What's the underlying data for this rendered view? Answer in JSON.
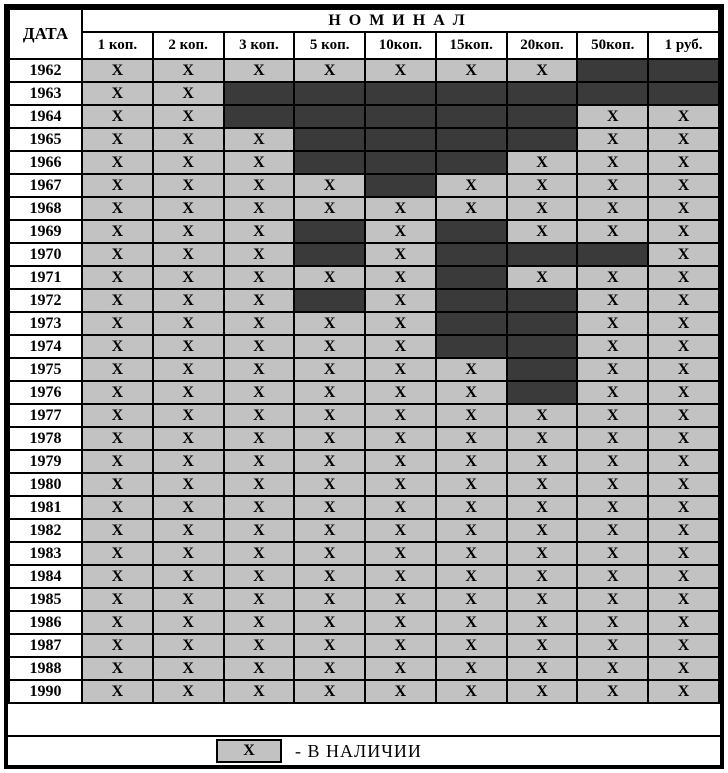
{
  "chart_data": {
    "type": "table",
    "row_header": "ДАТА",
    "title": "НОМИНАЛ",
    "columns": [
      "1 коп.",
      "2 коп.",
      "3 коп.",
      "5 коп.",
      "10коп.",
      "15коп.",
      "20коп.",
      "50коп.",
      "1 руб."
    ],
    "mark": "X",
    "rows": [
      {
        "year": "1962",
        "cells": [
          1,
          1,
          1,
          1,
          1,
          1,
          1,
          0,
          0
        ]
      },
      {
        "year": "1963",
        "cells": [
          1,
          1,
          0,
          0,
          0,
          0,
          0,
          0,
          0
        ]
      },
      {
        "year": "1964",
        "cells": [
          1,
          1,
          0,
          0,
          0,
          0,
          0,
          1,
          1
        ]
      },
      {
        "year": "1965",
        "cells": [
          1,
          1,
          1,
          0,
          0,
          0,
          0,
          1,
          1
        ]
      },
      {
        "year": "1966",
        "cells": [
          1,
          1,
          1,
          0,
          0,
          0,
          1,
          1,
          1
        ]
      },
      {
        "year": "1967",
        "cells": [
          1,
          1,
          1,
          1,
          0,
          1,
          1,
          1,
          1
        ]
      },
      {
        "year": "1968",
        "cells": [
          1,
          1,
          1,
          1,
          1,
          1,
          1,
          1,
          1
        ]
      },
      {
        "year": "1969",
        "cells": [
          1,
          1,
          1,
          0,
          1,
          0,
          1,
          1,
          1
        ]
      },
      {
        "year": "1970",
        "cells": [
          1,
          1,
          1,
          0,
          1,
          0,
          0,
          0,
          1
        ]
      },
      {
        "year": "1971",
        "cells": [
          1,
          1,
          1,
          1,
          1,
          0,
          1,
          1,
          1
        ]
      },
      {
        "year": "1972",
        "cells": [
          1,
          1,
          1,
          0,
          1,
          0,
          0,
          1,
          1
        ]
      },
      {
        "year": "1973",
        "cells": [
          1,
          1,
          1,
          1,
          1,
          0,
          0,
          1,
          1
        ]
      },
      {
        "year": "1974",
        "cells": [
          1,
          1,
          1,
          1,
          1,
          0,
          0,
          1,
          1
        ]
      },
      {
        "year": "1975",
        "cells": [
          1,
          1,
          1,
          1,
          1,
          1,
          0,
          1,
          1
        ]
      },
      {
        "year": "1976",
        "cells": [
          1,
          1,
          1,
          1,
          1,
          1,
          0,
          1,
          1
        ]
      },
      {
        "year": "1977",
        "cells": [
          1,
          1,
          1,
          1,
          1,
          1,
          1,
          1,
          1
        ]
      },
      {
        "year": "1978",
        "cells": [
          1,
          1,
          1,
          1,
          1,
          1,
          1,
          1,
          1
        ]
      },
      {
        "year": "1979",
        "cells": [
          1,
          1,
          1,
          1,
          1,
          1,
          1,
          1,
          1
        ]
      },
      {
        "year": "1980",
        "cells": [
          1,
          1,
          1,
          1,
          1,
          1,
          1,
          1,
          1
        ]
      },
      {
        "year": "1981",
        "cells": [
          1,
          1,
          1,
          1,
          1,
          1,
          1,
          1,
          1
        ]
      },
      {
        "year": "1982",
        "cells": [
          1,
          1,
          1,
          1,
          1,
          1,
          1,
          1,
          1
        ]
      },
      {
        "year": "1983",
        "cells": [
          1,
          1,
          1,
          1,
          1,
          1,
          1,
          1,
          1
        ]
      },
      {
        "year": "1984",
        "cells": [
          1,
          1,
          1,
          1,
          1,
          1,
          1,
          1,
          1
        ]
      },
      {
        "year": "1985",
        "cells": [
          1,
          1,
          1,
          1,
          1,
          1,
          1,
          1,
          1
        ]
      },
      {
        "year": "1986",
        "cells": [
          1,
          1,
          1,
          1,
          1,
          1,
          1,
          1,
          1
        ]
      },
      {
        "year": "1987",
        "cells": [
          1,
          1,
          1,
          1,
          1,
          1,
          1,
          1,
          1
        ]
      },
      {
        "year": "1988",
        "cells": [
          1,
          1,
          1,
          1,
          1,
          1,
          1,
          1,
          1
        ]
      },
      {
        "year": "1990",
        "cells": [
          1,
          1,
          1,
          1,
          1,
          1,
          1,
          1,
          1
        ]
      }
    ],
    "legend": {
      "symbol": "X",
      "label": "- В НАЛИЧИИ"
    }
  },
  "colors": {
    "available_bg": "#c2c2c2",
    "missing_bg": "#3a3a3a",
    "grid": "#000000",
    "page_bg": "#ffffff"
  }
}
